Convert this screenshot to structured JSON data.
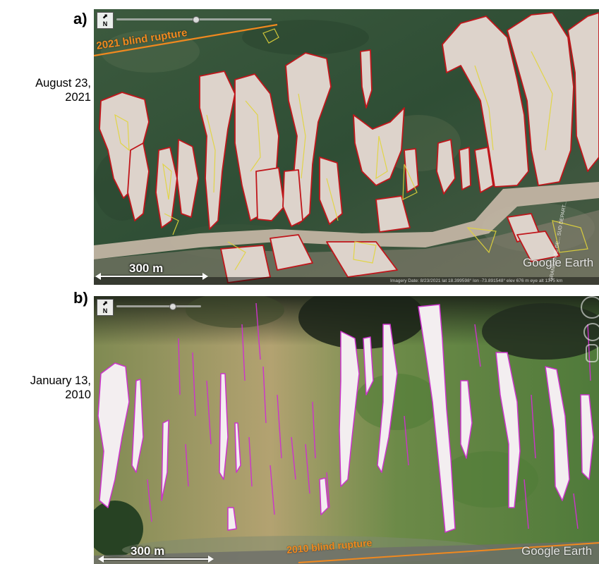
{
  "panel_a": {
    "letter": "a)",
    "date_line1": "August 23,",
    "date_line2": "2021",
    "rupture_label": "2021 blind rupture",
    "scale_label": "300 m",
    "watermark": "Google Earth",
    "status_bar": "Imagery Date: 8/23/2021    lat  18.399598°  lon -73.891548°  elev  676 m    eye alt  1375 km",
    "road_label": "GRAND'ANSE DE... SUD DEPART...",
    "north_icon": "north-arrow-icon",
    "colors": {
      "mapped_2021_outline": "#c0161b",
      "prior_outline": "#e2d53a",
      "rupture_line": "#f0891f"
    }
  },
  "panel_b": {
    "letter": "b)",
    "date_line1": "January 13,",
    "date_line2": "2010",
    "rupture_label": "2010 blind rupture",
    "scale_label": "300 m",
    "watermark": "Google Earth",
    "north_icon": "north-arrow-icon",
    "colors": {
      "mapped_2010_outline": "#cc33cc",
      "rupture_line": "#f0891f"
    }
  }
}
